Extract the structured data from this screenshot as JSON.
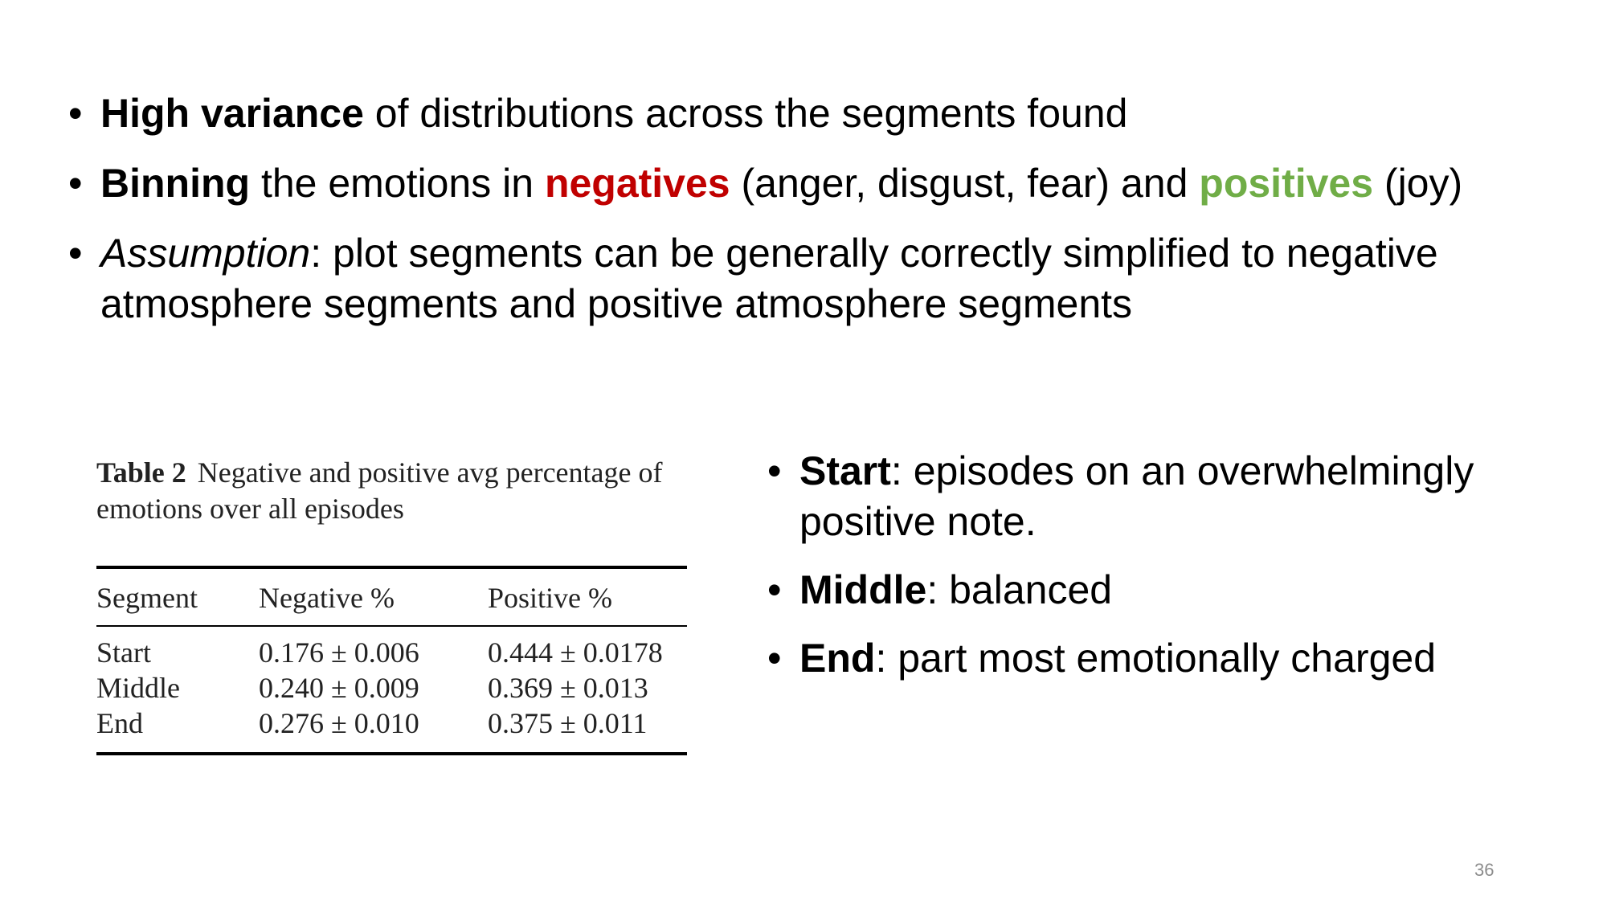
{
  "top_bullets": [
    {
      "bold": "High variance",
      "text": " of distributions across the segments found"
    },
    {
      "bold": "Binning",
      "text_before": " the emotions in ",
      "negatives": "negatives",
      "text_middle": " (anger, disgust, fear) and ",
      "positives": "positives",
      "text_after": " (joy)"
    },
    {
      "italic": "Assumption",
      "text": ": plot segments can be generally correctly simplified to negative atmosphere segments and positive atmosphere segments"
    }
  ],
  "table": {
    "caption_label": "Table 2",
    "caption_text": "Negative and positive avg percentage of emotions over all episodes",
    "headers": [
      "Segment",
      "Negative %",
      "Positive %"
    ],
    "rows": [
      [
        "Start",
        "0.176 ± 0.006",
        "0.444 ± 0.0178"
      ],
      [
        "Middle",
        "0.240 ± 0.009",
        "0.369 ± 0.013"
      ],
      [
        "End",
        "0.276 ± 0.010",
        "0.375 ± 0.011"
      ]
    ]
  },
  "right_bullets": [
    {
      "bold": "Start",
      "text": ": episodes on an overwhelmingly positive note."
    },
    {
      "bold": "Middle",
      "text": ": balanced"
    },
    {
      "bold": "End",
      "text": ": part most emotionally charged"
    }
  ],
  "bullet_char": "•",
  "page_number": "36",
  "colors": {
    "negatives": "#c00000",
    "positives": "#70ad47"
  }
}
